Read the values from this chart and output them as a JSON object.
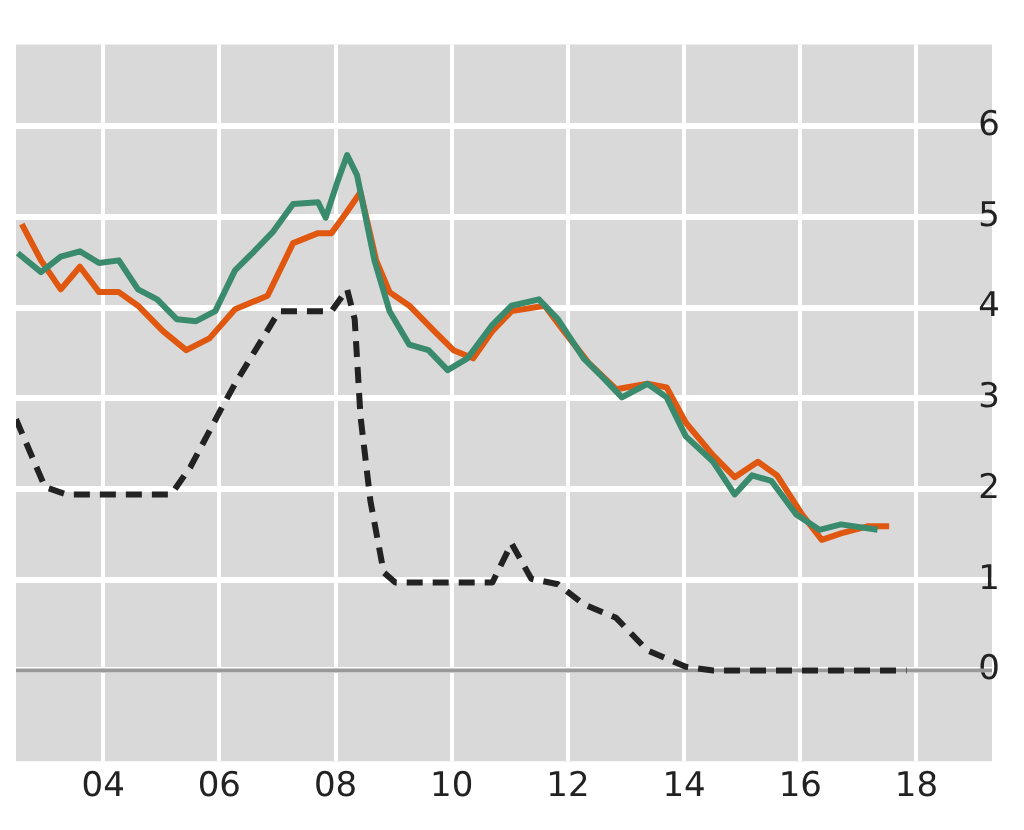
{
  "chart_data": {
    "type": "line",
    "xlim": [
      2002.5,
      2019.3
    ],
    "ylim": [
      -1,
      6.9
    ],
    "xticks": [
      {
        "value": 2004,
        "label": "04"
      },
      {
        "value": 2006,
        "label": "06"
      },
      {
        "value": 2008,
        "label": "08"
      },
      {
        "value": 2010,
        "label": "10"
      },
      {
        "value": 2012,
        "label": "12"
      },
      {
        "value": 2014,
        "label": "14"
      },
      {
        "value": 2016,
        "label": "16"
      },
      {
        "value": 2018,
        "label": "18"
      }
    ],
    "yticks": [
      0,
      1,
      2,
      3,
      4,
      5,
      6
    ],
    "grid": true,
    "legend": false,
    "marker": "none",
    "ref_lines": [
      {
        "axis": "y",
        "value": 0,
        "color": "#999999"
      }
    ],
    "series": [
      {
        "color": "#3a8a6e",
        "line_style": "solid",
        "x": [
          2002.53,
          2002.93,
          2003.27,
          2003.6,
          2003.93,
          2004.27,
          2004.6,
          2004.93,
          2005.27,
          2005.6,
          2005.93,
          2006.27,
          2006.6,
          2006.93,
          2007.27,
          2007.7,
          2007.83,
          2008.03,
          2008.2,
          2008.37,
          2008.67,
          2008.93,
          2009.27,
          2009.6,
          2009.93,
          2010.27,
          2010.7,
          2011.03,
          2011.5,
          2011.83,
          2012.27,
          2012.6,
          2012.93,
          2013.37,
          2013.7,
          2014.03,
          2014.5,
          2014.87,
          2015.17,
          2015.5,
          2015.93,
          2016.33,
          2016.7,
          2017.33
        ],
        "values": [
          4.6,
          4.39,
          4.56,
          4.62,
          4.49,
          4.52,
          4.2,
          4.09,
          3.87,
          3.85,
          3.96,
          4.41,
          4.62,
          4.84,
          5.14,
          5.16,
          4.99,
          5.38,
          5.68,
          5.46,
          4.52,
          3.96,
          3.59,
          3.53,
          3.31,
          3.44,
          3.81,
          4.02,
          4.09,
          3.87,
          3.44,
          3.23,
          3.01,
          3.16,
          3.01,
          2.58,
          2.3,
          1.94,
          2.15,
          2.09,
          1.72,
          1.55,
          1.61,
          1.55
        ]
      },
      {
        "color": "#e0570f",
        "line_style": "solid",
        "x": [
          2002.6,
          2002.93,
          2003.27,
          2003.6,
          2003.93,
          2004.27,
          2004.6,
          2005.03,
          2005.43,
          2005.83,
          2006.27,
          2006.83,
          2007.27,
          2007.7,
          2007.93,
          2008.17,
          2008.43,
          2008.7,
          2008.93,
          2009.27,
          2009.7,
          2010.03,
          2010.37,
          2010.7,
          2011.03,
          2011.6,
          2011.93,
          2012.37,
          2012.83,
          2013.37,
          2013.7,
          2014.03,
          2014.5,
          2014.87,
          2015.27,
          2015.6,
          2016.03,
          2016.37,
          2016.7,
          2017.17,
          2017.53
        ],
        "values": [
          4.92,
          4.52,
          4.2,
          4.45,
          4.17,
          4.17,
          4.02,
          3.74,
          3.53,
          3.66,
          3.98,
          4.13,
          4.71,
          4.82,
          4.82,
          5.03,
          5.27,
          4.52,
          4.17,
          4.02,
          3.74,
          3.53,
          3.44,
          3.74,
          3.96,
          4.02,
          3.74,
          3.38,
          3.1,
          3.16,
          3.12,
          2.73,
          2.37,
          2.13,
          2.3,
          2.15,
          1.72,
          1.44,
          1.51,
          1.59,
          1.59
        ]
      },
      {
        "color": "#222222",
        "line_style": "dashed",
        "x": [
          2002.5,
          2003.0,
          2003.37,
          2005.17,
          2005.5,
          2006.03,
          2006.27,
          2007.03,
          2007.93,
          2008.2,
          2008.33,
          2008.43,
          2008.6,
          2008.83,
          2009.03,
          2010.7,
          2011.03,
          2011.37,
          2011.83,
          2012.27,
          2012.83,
          2013.37,
          2014.03,
          2014.5,
          2017.83
        ],
        "values": [
          2.77,
          2.02,
          1.94,
          1.94,
          2.24,
          2.88,
          3.16,
          3.96,
          3.96,
          4.2,
          3.87,
          2.8,
          1.87,
          1.08,
          0.97,
          0.97,
          1.4,
          1.01,
          0.95,
          0.73,
          0.58,
          0.22,
          0.04,
          0,
          0
        ]
      }
    ]
  }
}
